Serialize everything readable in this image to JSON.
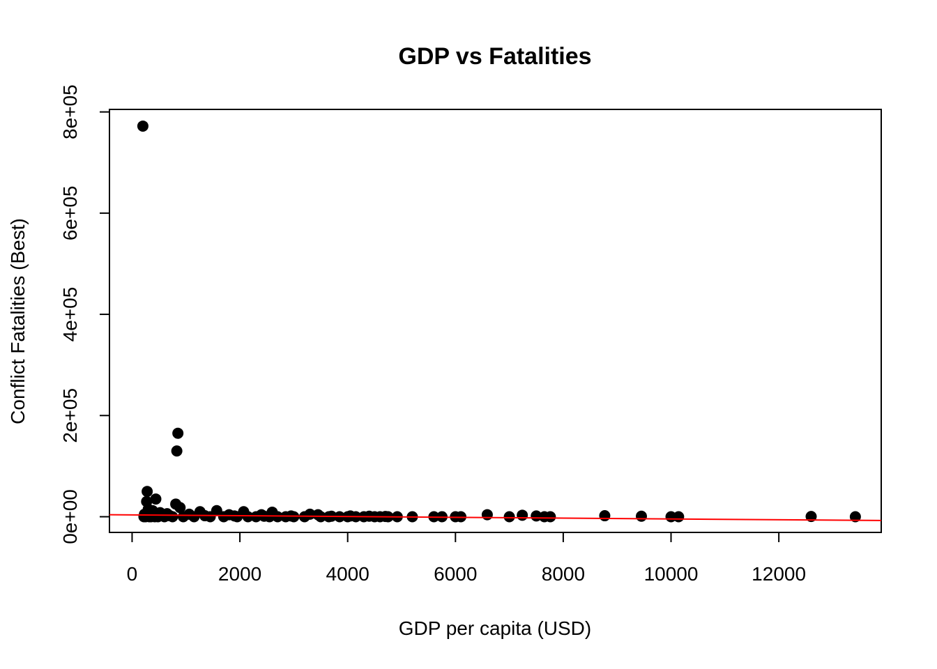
{
  "chart_data": {
    "type": "scatter",
    "title": "GDP vs Fatalities",
    "xlabel": "GDP per capita (USD)",
    "ylabel": "Conflict Fatalities (Best)",
    "xlim": [
      -420,
      13900
    ],
    "ylim": [
      -31000,
      805000
    ],
    "x_ticks": [
      0,
      2000,
      4000,
      6000,
      8000,
      10000,
      12000
    ],
    "x_tick_labels": [
      "0",
      "2000",
      "4000",
      "6000",
      "8000",
      "10000",
      "12000"
    ],
    "y_ticks": [
      0,
      200000,
      400000,
      600000,
      800000
    ],
    "y_tick_labels": [
      "0e+00",
      "2e+05",
      "4e+05",
      "6e+05",
      "8e+05"
    ],
    "grid": false,
    "legend": "none",
    "point_color": "#000000",
    "trend_color": "#ff0000",
    "trend_line": {
      "x": [
        -420,
        13900
      ],
      "y": [
        4000,
        -7500
      ]
    },
    "points": [
      [
        200,
        772000
      ],
      [
        850,
        165000
      ],
      [
        830,
        130000
      ],
      [
        280,
        50000
      ],
      [
        440,
        35000
      ],
      [
        270,
        30000
      ],
      [
        810,
        25000
      ],
      [
        890,
        18000
      ],
      [
        300,
        15000
      ],
      [
        380,
        12000
      ],
      [
        1260,
        10000
      ],
      [
        1570,
        12000
      ],
      [
        2070,
        10000
      ],
      [
        2600,
        9000
      ],
      [
        520,
        8000
      ],
      [
        650,
        6000
      ],
      [
        1060,
        5000
      ],
      [
        1800,
        4000
      ],
      [
        2400,
        4000
      ],
      [
        3300,
        5000
      ],
      [
        3450,
        4000
      ],
      [
        6590,
        4000
      ],
      [
        7240,
        3000
      ],
      [
        8770,
        2000
      ],
      [
        9450,
        1000
      ],
      [
        12600,
        500
      ],
      [
        13420,
        0
      ],
      [
        10000,
        0
      ],
      [
        10140,
        0
      ],
      [
        7500,
        1500
      ],
      [
        7650,
        0
      ],
      [
        7760,
        0
      ],
      [
        7000,
        0
      ],
      [
        5600,
        0
      ],
      [
        5750,
        0
      ],
      [
        6000,
        0
      ],
      [
        6100,
        0
      ],
      [
        5200,
        0
      ],
      [
        4920,
        0
      ],
      [
        4750,
        0
      ],
      [
        4600,
        0
      ],
      [
        4500,
        0
      ],
      [
        4300,
        0
      ],
      [
        4150,
        0
      ],
      [
        4000,
        0
      ],
      [
        3850,
        0
      ],
      [
        3650,
        0
      ],
      [
        3500,
        0
      ],
      [
        3200,
        0
      ],
      [
        3000,
        0
      ],
      [
        2850,
        0
      ],
      [
        2700,
        0
      ],
      [
        2550,
        0
      ],
      [
        2300,
        0
      ],
      [
        2150,
        0
      ],
      [
        1950,
        0
      ],
      [
        1700,
        0
      ],
      [
        1450,
        0
      ],
      [
        1150,
        0
      ],
      [
        950,
        0
      ],
      [
        750,
        0
      ],
      [
        600,
        0
      ],
      [
        480,
        0
      ],
      [
        420,
        0
      ],
      [
        350,
        0
      ],
      [
        320,
        0
      ],
      [
        250,
        0
      ],
      [
        220,
        0
      ],
      [
        230,
        5000
      ],
      [
        340,
        3000
      ],
      [
        460,
        2000
      ],
      [
        700,
        2000
      ],
      [
        1350,
        2000
      ],
      [
        1900,
        1500
      ],
      [
        2450,
        1000
      ],
      [
        2950,
        1500
      ],
      [
        3700,
        1000
      ],
      [
        4050,
        1500
      ],
      [
        4400,
        1000
      ],
      [
        4700,
        500
      ]
    ]
  }
}
